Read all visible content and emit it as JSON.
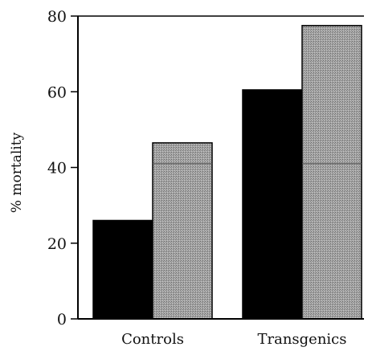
{
  "chart_data": {
    "type": "bar",
    "categories": [
      "Controls",
      "Transgenics"
    ],
    "series": [
      {
        "color": "#000000",
        "values": [
          26,
          60.5
        ]
      },
      {
        "color": "#9a9a9a",
        "values": [
          46.5,
          77.5
        ]
      }
    ],
    "ylabel": "% mortality",
    "xlabel": "",
    "ylim": [
      0,
      80
    ],
    "yticks": [
      "0",
      "20",
      "40",
      "60",
      "80"
    ],
    "grid": false,
    "legend": "none"
  }
}
